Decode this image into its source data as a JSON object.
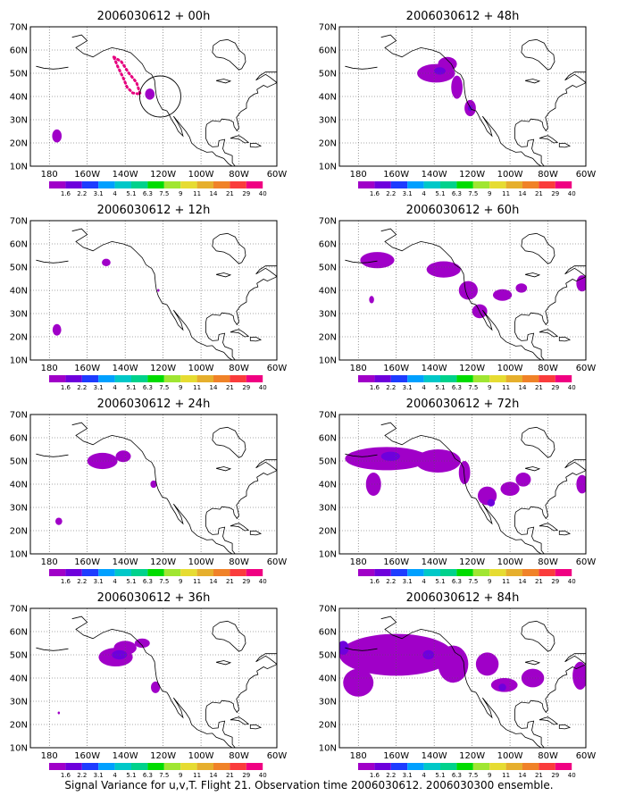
{
  "lat_labels": [
    "70N",
    "60N",
    "50N",
    "40N",
    "30N",
    "20N",
    "10N"
  ],
  "lon_labels": [
    "180",
    "160W",
    "140W",
    "120W",
    "100W",
    "80W",
    "60W"
  ],
  "colorbar": {
    "labels": [
      "1.6",
      "2.2",
      "3.1",
      "4",
      "5.1",
      "6.3",
      "7.5",
      "9",
      "11",
      "14",
      "21",
      "29",
      "40"
    ],
    "colors": [
      "#a000c8",
      "#6e00dc",
      "#1e3cff",
      "#00a0ff",
      "#00c8c8",
      "#00d28c",
      "#00dc00",
      "#a0e632",
      "#e6dc32",
      "#e6af2d",
      "#f08228",
      "#fa3c3c",
      "#f00082"
    ]
  },
  "panels": [
    {
      "id": "00h",
      "title": "2006030612 + 00h"
    },
    {
      "id": "48h",
      "title": "2006030612 + 48h"
    },
    {
      "id": "12h",
      "title": "2006030612 + 12h"
    },
    {
      "id": "60h",
      "title": "2006030612 + 60h"
    },
    {
      "id": "24h",
      "title": "2006030612 + 24h"
    },
    {
      "id": "72h",
      "title": "2006030612 + 72h"
    },
    {
      "id": "36h",
      "title": "2006030612 + 36h"
    },
    {
      "id": "84h",
      "title": "2006030612 + 84h"
    }
  ],
  "caption": "Signal Variance for u,v,T. Flight 21. Observation time 2006030612. 2006030300 ensemble."
}
